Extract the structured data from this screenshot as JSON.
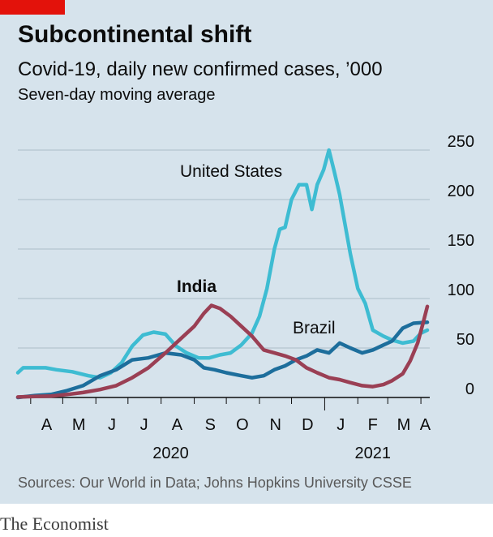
{
  "header": {
    "title": "Subcontinental shift",
    "subtitle": "Covid-19, daily new confirmed cases, ’000",
    "note": "Seven-day moving average"
  },
  "footer": {
    "source": "Sources: Our World in Data; Johns Hopkins University CSSE",
    "brand": "The Economist"
  },
  "colors": {
    "background": "#d6e3ec",
    "accent_red": "#e3120b",
    "us": "#3ebcd2",
    "brazil": "#1d6e9c",
    "india": "#9a3f54",
    "grid": "#b5c5cf"
  },
  "chart_data": {
    "type": "line",
    "ylim": [
      0,
      250
    ],
    "yticks": [
      "250",
      "200",
      "150",
      "100",
      "50",
      "0"
    ],
    "xticks": [
      "A",
      "M",
      "J",
      "J",
      "A",
      "S",
      "O",
      "N",
      "D",
      "J",
      "F",
      "M",
      "A"
    ],
    "years": [
      "2020",
      "2021"
    ],
    "grid": true,
    "series": [
      {
        "name": "United States",
        "color": "#3ebcd2",
        "x": [
          "2020-03-20",
          "2020-03-25",
          "2020-04-05",
          "2020-04-15",
          "2020-04-25",
          "2020-05-10",
          "2020-05-25",
          "2020-06-05",
          "2020-06-15",
          "2020-06-25",
          "2020-07-05",
          "2020-07-15",
          "2020-07-25",
          "2020-08-05",
          "2020-08-15",
          "2020-08-25",
          "2020-09-05",
          "2020-09-15",
          "2020-09-25",
          "2020-10-05",
          "2020-10-15",
          "2020-10-25",
          "2020-11-01",
          "2020-11-08",
          "2020-11-15",
          "2020-11-20",
          "2020-11-25",
          "2020-12-01",
          "2020-12-08",
          "2020-12-15",
          "2020-12-20",
          "2020-12-25",
          "2020-12-31",
          "2021-01-05",
          "2021-01-10",
          "2021-01-15",
          "2021-01-25",
          "2021-02-01",
          "2021-02-08",
          "2021-02-15",
          "2021-02-25",
          "2021-03-05",
          "2021-03-15",
          "2021-03-25",
          "2021-04-01",
          "2021-04-07"
        ],
        "values": [
          25,
          30,
          30,
          30,
          28,
          26,
          22,
          20,
          25,
          35,
          52,
          63,
          66,
          64,
          52,
          45,
          40,
          40,
          43,
          45,
          53,
          65,
          82,
          110,
          150,
          170,
          172,
          200,
          215,
          215,
          190,
          215,
          230,
          250,
          228,
          205,
          145,
          110,
          95,
          68,
          62,
          58,
          55,
          57,
          65,
          68
        ]
      },
      {
        "name": "Brazil",
        "color": "#1d6e9c",
        "x": [
          "2020-03-20",
          "2020-04-05",
          "2020-04-20",
          "2020-05-05",
          "2020-05-20",
          "2020-06-05",
          "2020-06-20",
          "2020-07-05",
          "2020-07-20",
          "2020-08-05",
          "2020-08-20",
          "2020-09-01",
          "2020-09-10",
          "2020-09-20",
          "2020-10-01",
          "2020-10-15",
          "2020-10-25",
          "2020-11-05",
          "2020-11-15",
          "2020-11-25",
          "2020-12-05",
          "2020-12-15",
          "2020-12-25",
          "2021-01-05",
          "2021-01-15",
          "2021-01-25",
          "2021-02-05",
          "2021-02-15",
          "2021-02-25",
          "2021-03-05",
          "2021-03-15",
          "2021-03-25",
          "2021-04-07"
        ],
        "values": [
          0,
          2,
          3,
          7,
          12,
          22,
          28,
          38,
          40,
          45,
          43,
          38,
          30,
          28,
          25,
          22,
          20,
          22,
          28,
          32,
          38,
          42,
          48,
          45,
          55,
          50,
          45,
          48,
          53,
          57,
          70,
          75,
          76
        ]
      },
      {
        "name": "India",
        "color": "#9a3f54",
        "x": [
          "2020-03-20",
          "2020-04-05",
          "2020-04-20",
          "2020-05-05",
          "2020-05-20",
          "2020-06-05",
          "2020-06-20",
          "2020-07-05",
          "2020-07-20",
          "2020-08-05",
          "2020-08-20",
          "2020-09-01",
          "2020-09-10",
          "2020-09-17",
          "2020-09-25",
          "2020-10-05",
          "2020-10-15",
          "2020-10-25",
          "2020-11-05",
          "2020-11-15",
          "2020-11-25",
          "2020-12-05",
          "2020-12-15",
          "2020-12-25",
          "2021-01-05",
          "2021-01-15",
          "2021-01-25",
          "2021-02-05",
          "2021-02-15",
          "2021-02-25",
          "2021-03-05",
          "2021-03-15",
          "2021-03-22",
          "2021-03-29",
          "2021-04-03",
          "2021-04-07"
        ],
        "values": [
          0.5,
          1,
          1.5,
          3,
          5,
          8,
          12,
          20,
          30,
          45,
          60,
          72,
          85,
          93,
          90,
          82,
          72,
          62,
          48,
          45,
          42,
          38,
          30,
          25,
          20,
          18,
          15,
          12,
          11,
          13,
          17,
          24,
          37,
          55,
          75,
          92
        ]
      }
    ],
    "labels": [
      {
        "text": "United States",
        "series": "United States"
      },
      {
        "text": "India",
        "series": "India",
        "bold": true
      },
      {
        "text": "Brazil",
        "series": "Brazil"
      }
    ]
  }
}
